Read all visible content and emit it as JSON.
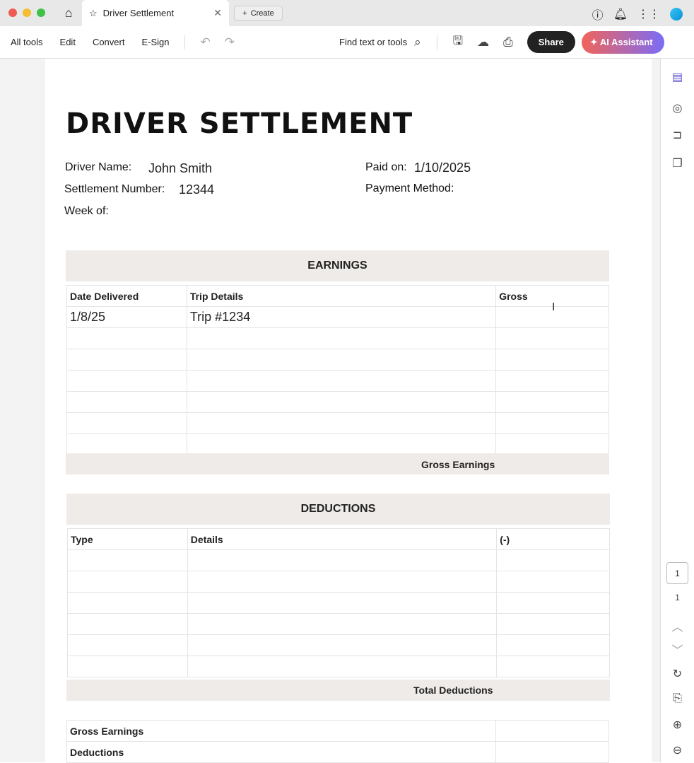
{
  "browser": {
    "tab_title": "Driver Settlement",
    "create_label": "Create"
  },
  "toolbar": {
    "all_tools": "All tools",
    "edit": "Edit",
    "convert": "Convert",
    "esign": "E-Sign",
    "search": "Find text or tools",
    "share": "Share",
    "ai": "AI Assistant"
  },
  "doc": {
    "title": "DRIVER SETTLEMENT",
    "driver_name_label": "Driver Name:",
    "driver_name": "John Smith",
    "settlement_label": "Settlement Number:",
    "settlement_number": "12344",
    "week_label": "Week of:",
    "paid_label": "Paid on:",
    "paid_on": "1/10/2025",
    "payment_label": "Payment Method:",
    "earnings": {
      "title": "EARNINGS",
      "headers": [
        "Date Delivered",
        "Trip Details",
        "Gross"
      ],
      "rows": [
        [
          "1/8/25",
          "Trip #1234",
          ""
        ],
        [
          "",
          "",
          ""
        ],
        [
          "",
          "",
          ""
        ],
        [
          "",
          "",
          ""
        ],
        [
          "",
          "",
          ""
        ],
        [
          "",
          "",
          ""
        ],
        [
          "",
          "",
          ""
        ]
      ],
      "footer": "Gross Earnings"
    },
    "deductions": {
      "title": "DEDUCTIONS",
      "headers": [
        "Type",
        "Details",
        "(-)"
      ],
      "rows": [
        [
          "",
          "",
          ""
        ],
        [
          "",
          "",
          ""
        ],
        [
          "",
          "",
          ""
        ],
        [
          "",
          "",
          ""
        ],
        [
          "",
          "",
          ""
        ],
        [
          "",
          "",
          ""
        ]
      ],
      "footer": "Total Deductions"
    },
    "summary": [
      "Gross Earnings",
      "Deductions"
    ]
  },
  "sidebar": {
    "page_current": "1",
    "page_total": "1"
  }
}
